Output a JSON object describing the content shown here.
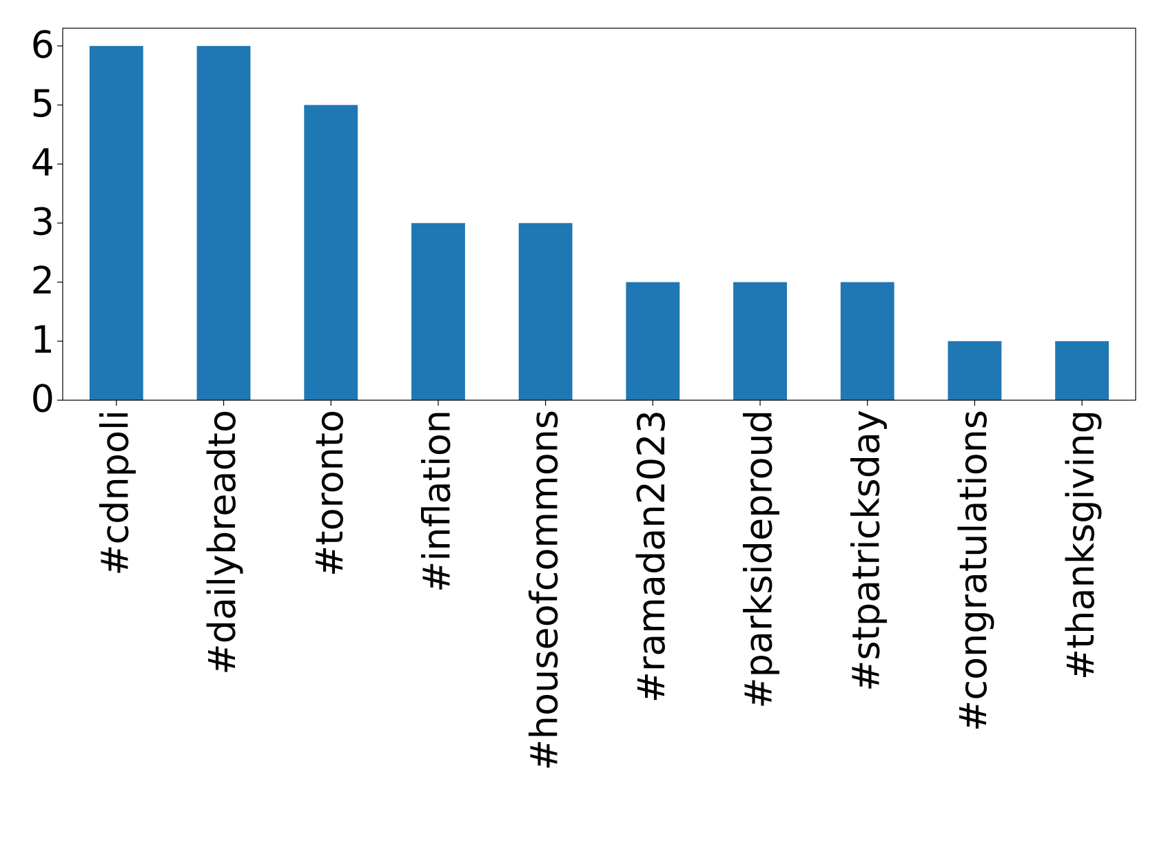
{
  "chart_data": {
    "type": "bar",
    "categories": [
      "#cdnpoli",
      "#dailybreadto",
      "#toronto",
      "#inflation",
      "#houseofcommons",
      "#ramadan2023",
      "#parksideproud",
      "#stpatricksday",
      "#congratulations",
      "#thanksgiving"
    ],
    "values": [
      6,
      6,
      5,
      3,
      3,
      2,
      2,
      2,
      1,
      1
    ],
    "color": "#1f77b4",
    "ylim": [
      0,
      6.3
    ],
    "yticks": [
      0,
      1,
      2,
      3,
      4,
      5,
      6
    ],
    "grid": false
  }
}
